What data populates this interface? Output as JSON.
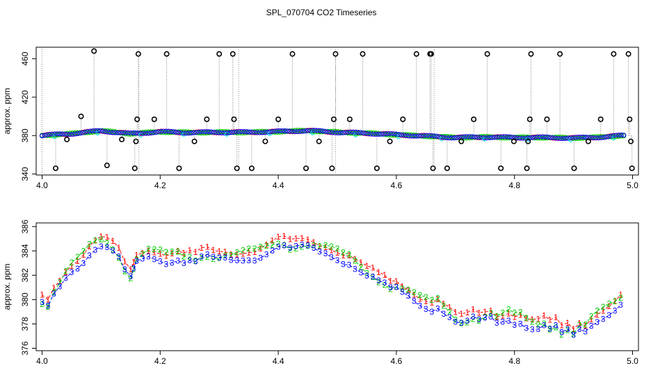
{
  "title": "SPL_070704  CO2 Timeseries",
  "chart_data": [
    {
      "type": "line",
      "panel": "top",
      "title": "SPL_070704  CO2 Timeseries",
      "xlabel": "",
      "ylabel": "approx. ppm",
      "xlim": [
        3.99,
        5.01
      ],
      "ylim": [
        339,
        472
      ],
      "x_ticks": [
        {
          "value": 4.0,
          "label": "4.0"
        },
        {
          "value": 4.2,
          "label": "4.2"
        },
        {
          "value": 4.4,
          "label": "4.4"
        },
        {
          "value": 4.6,
          "label": "4.6"
        },
        {
          "value": 4.8,
          "label": "4.8"
        },
        {
          "value": 5.0,
          "label": "5.0"
        }
      ],
      "y_ticks": [
        {
          "value": 340,
          "label": "340"
        },
        {
          "value": 380,
          "label": "380"
        },
        {
          "value": 420,
          "label": "420"
        },
        {
          "value": 460,
          "label": "460"
        }
      ],
      "baseline_points": [
        [
          4.0,
          380.2
        ],
        [
          4.05,
          382.0
        ],
        [
          4.1,
          385.0
        ],
        [
          4.15,
          382.0
        ],
        [
          4.2,
          384.0
        ],
        [
          4.25,
          383.2
        ],
        [
          4.3,
          383.5
        ],
        [
          4.35,
          383.5
        ],
        [
          4.4,
          384.2
        ],
        [
          4.45,
          385.2
        ],
        [
          4.5,
          383.5
        ],
        [
          4.55,
          382.5
        ],
        [
          4.6,
          381.0
        ],
        [
          4.65,
          379.5
        ],
        [
          4.7,
          378.0
        ],
        [
          4.75,
          378.5
        ],
        [
          4.8,
          378.0
        ],
        [
          4.85,
          378.0
        ],
        [
          4.9,
          377.5
        ],
        [
          4.95,
          378.5
        ],
        [
          4.98,
          380.0
        ]
      ],
      "outliers": [
        {
          "x": 4.023,
          "y": 346
        },
        {
          "x": 4.042,
          "y": 376
        },
        {
          "x": 4.066,
          "y": 400
        },
        {
          "x": 4.088,
          "y": 468
        },
        {
          "x": 4.11,
          "y": 349
        },
        {
          "x": 4.135,
          "y": 376
        },
        {
          "x": 4.157,
          "y": 346
        },
        {
          "x": 4.159,
          "y": 374
        },
        {
          "x": 4.161,
          "y": 397
        },
        {
          "x": 4.163,
          "y": 465
        },
        {
          "x": 4.19,
          "y": 397
        },
        {
          "x": 4.211,
          "y": 465
        },
        {
          "x": 4.232,
          "y": 346
        },
        {
          "x": 4.258,
          "y": 374
        },
        {
          "x": 4.279,
          "y": 397
        },
        {
          "x": 4.3,
          "y": 465
        },
        {
          "x": 4.323,
          "y": 465
        },
        {
          "x": 4.325,
          "y": 397
        },
        {
          "x": 4.33,
          "y": 346
        },
        {
          "x": 4.355,
          "y": 346
        },
        {
          "x": 4.378,
          "y": 374
        },
        {
          "x": 4.4,
          "y": 397
        },
        {
          "x": 4.424,
          "y": 465
        },
        {
          "x": 4.447,
          "y": 346
        },
        {
          "x": 4.469,
          "y": 374
        },
        {
          "x": 4.491,
          "y": 346
        },
        {
          "x": 4.494,
          "y": 397
        },
        {
          "x": 4.497,
          "y": 465
        },
        {
          "x": 4.521,
          "y": 397
        },
        {
          "x": 4.543,
          "y": 465
        },
        {
          "x": 4.567,
          "y": 346
        },
        {
          "x": 4.589,
          "y": 374
        },
        {
          "x": 4.611,
          "y": 397
        },
        {
          "x": 4.634,
          "y": 465
        },
        {
          "x": 4.657,
          "y": 465
        },
        {
          "x": 4.659,
          "y": 465
        },
        {
          "x": 4.662,
          "y": 346
        },
        {
          "x": 4.686,
          "y": 346
        },
        {
          "x": 4.71,
          "y": 374
        },
        {
          "x": 4.731,
          "y": 397
        },
        {
          "x": 4.754,
          "y": 465
        },
        {
          "x": 4.777,
          "y": 346
        },
        {
          "x": 4.799,
          "y": 374
        },
        {
          "x": 4.821,
          "y": 346
        },
        {
          "x": 4.823,
          "y": 374
        },
        {
          "x": 4.826,
          "y": 397
        },
        {
          "x": 4.828,
          "y": 465
        },
        {
          "x": 4.855,
          "y": 397
        },
        {
          "x": 4.877,
          "y": 465
        },
        {
          "x": 4.901,
          "y": 346
        },
        {
          "x": 4.925,
          "y": 374
        },
        {
          "x": 4.946,
          "y": 397
        },
        {
          "x": 4.968,
          "y": 465
        },
        {
          "x": 4.993,
          "y": 465
        },
        {
          "x": 4.995,
          "y": 397
        },
        {
          "x": 4.997,
          "y": 374
        },
        {
          "x": 4.999,
          "y": 346
        }
      ],
      "vertical_lines_x": [
        4.0,
        4.164,
        4.333,
        4.497,
        4.664
      ],
      "colors": {
        "outlier": "#000000",
        "connector": "#888888",
        "series": [
          "#ff0000",
          "#00cc00",
          "#0000ff",
          "#00e5ee"
        ]
      }
    },
    {
      "type": "line",
      "panel": "bottom",
      "xlabel": "",
      "ylabel": "approx. ppm",
      "xlim": [
        3.99,
        5.01
      ],
      "ylim": [
        375.8,
        386.3
      ],
      "x_ticks": [
        {
          "value": 4.0,
          "label": "4.0"
        },
        {
          "value": 4.2,
          "label": "4.2"
        },
        {
          "value": 4.4,
          "label": "4.4"
        },
        {
          "value": 4.6,
          "label": "4.6"
        },
        {
          "value": 4.8,
          "label": "4.8"
        },
        {
          "value": 5.0,
          "label": "5.0"
        }
      ],
      "y_ticks": [
        {
          "value": 376,
          "label": "376"
        },
        {
          "value": 378,
          "label": "378"
        },
        {
          "value": 380,
          "label": "380"
        },
        {
          "value": 382,
          "label": "382"
        },
        {
          "value": 384,
          "label": "384"
        },
        {
          "value": 386,
          "label": "386"
        }
      ],
      "series": [
        {
          "name": "1",
          "marker": "1",
          "color": "#ff0000",
          "offset": 0.35
        },
        {
          "name": "2",
          "marker": "2",
          "color": "#00cc00",
          "offset": 0.1
        },
        {
          "name": "3",
          "marker": "3",
          "color": "#0000ff",
          "offset": -0.3
        }
      ],
      "points": [
        [
          4.0,
          379.8
        ],
        [
          4.01,
          379.5
        ],
        [
          4.02,
          380.6
        ],
        [
          4.03,
          381.3
        ],
        [
          4.04,
          382.1
        ],
        [
          4.05,
          382.7
        ],
        [
          4.06,
          383.1
        ],
        [
          4.07,
          383.6
        ],
        [
          4.08,
          384.2
        ],
        [
          4.09,
          384.6
        ],
        [
          4.1,
          384.8
        ],
        [
          4.11,
          384.6
        ],
        [
          4.12,
          384.2
        ],
        [
          4.13,
          383.6
        ],
        [
          4.14,
          382.5
        ],
        [
          4.15,
          381.9
        ],
        [
          4.155,
          382.6
        ],
        [
          4.16,
          383.3
        ],
        [
          4.17,
          383.6
        ],
        [
          4.18,
          383.9
        ],
        [
          4.19,
          383.8
        ],
        [
          4.2,
          383.7
        ],
        [
          4.21,
          383.5
        ],
        [
          4.22,
          383.6
        ],
        [
          4.23,
          383.7
        ],
        [
          4.24,
          383.4
        ],
        [
          4.25,
          383.5
        ],
        [
          4.26,
          383.3
        ],
        [
          4.27,
          383.6
        ],
        [
          4.28,
          383.7
        ],
        [
          4.29,
          383.5
        ],
        [
          4.3,
          383.5
        ],
        [
          4.31,
          383.6
        ],
        [
          4.32,
          383.5
        ],
        [
          4.33,
          383.6
        ],
        [
          4.34,
          383.7
        ],
        [
          4.35,
          383.8
        ],
        [
          4.36,
          383.8
        ],
        [
          4.37,
          384.0
        ],
        [
          4.38,
          384.2
        ],
        [
          4.39,
          384.4
        ],
        [
          4.4,
          384.6
        ],
        [
          4.41,
          384.6
        ],
        [
          4.42,
          384.3
        ],
        [
          4.43,
          384.4
        ],
        [
          4.44,
          384.5
        ],
        [
          4.45,
          384.5
        ],
        [
          4.46,
          384.4
        ],
        [
          4.47,
          384.2
        ],
        [
          4.48,
          384.2
        ],
        [
          4.49,
          384.0
        ],
        [
          4.5,
          383.8
        ],
        [
          4.51,
          383.5
        ],
        [
          4.52,
          383.4
        ],
        [
          4.53,
          383.0
        ],
        [
          4.54,
          382.6
        ],
        [
          4.55,
          382.2
        ],
        [
          4.56,
          382.0
        ],
        [
          4.57,
          381.6
        ],
        [
          4.58,
          381.4
        ],
        [
          4.59,
          381.0
        ],
        [
          4.6,
          381.1
        ],
        [
          4.61,
          380.8
        ],
        [
          4.62,
          380.6
        ],
        [
          4.63,
          380.3
        ],
        [
          4.64,
          380.0
        ],
        [
          4.65,
          379.8
        ],
        [
          4.66,
          379.6
        ],
        [
          4.67,
          379.8
        ],
        [
          4.68,
          379.3
        ],
        [
          4.69,
          378.9
        ],
        [
          4.7,
          378.4
        ],
        [
          4.71,
          378.2
        ],
        [
          4.72,
          378.3
        ],
        [
          4.73,
          378.6
        ],
        [
          4.74,
          378.4
        ],
        [
          4.75,
          378.6
        ],
        [
          4.76,
          378.8
        ],
        [
          4.77,
          378.4
        ],
        [
          4.78,
          378.6
        ],
        [
          4.79,
          378.8
        ],
        [
          4.8,
          378.5
        ],
        [
          4.81,
          378.6
        ],
        [
          4.82,
          378.2
        ],
        [
          4.83,
          378.0
        ],
        [
          4.84,
          377.9
        ],
        [
          4.85,
          378.1
        ],
        [
          4.86,
          377.7
        ],
        [
          4.87,
          377.9
        ],
        [
          4.88,
          377.3
        ],
        [
          4.89,
          377.6
        ],
        [
          4.9,
          377.2
        ],
        [
          4.91,
          377.8
        ],
        [
          4.92,
          377.7
        ],
        [
          4.93,
          378.3
        ],
        [
          4.94,
          378.7
        ],
        [
          4.95,
          379.0
        ],
        [
          4.96,
          379.3
        ],
        [
          4.97,
          379.6
        ],
        [
          4.98,
          380.0
        ]
      ]
    }
  ]
}
